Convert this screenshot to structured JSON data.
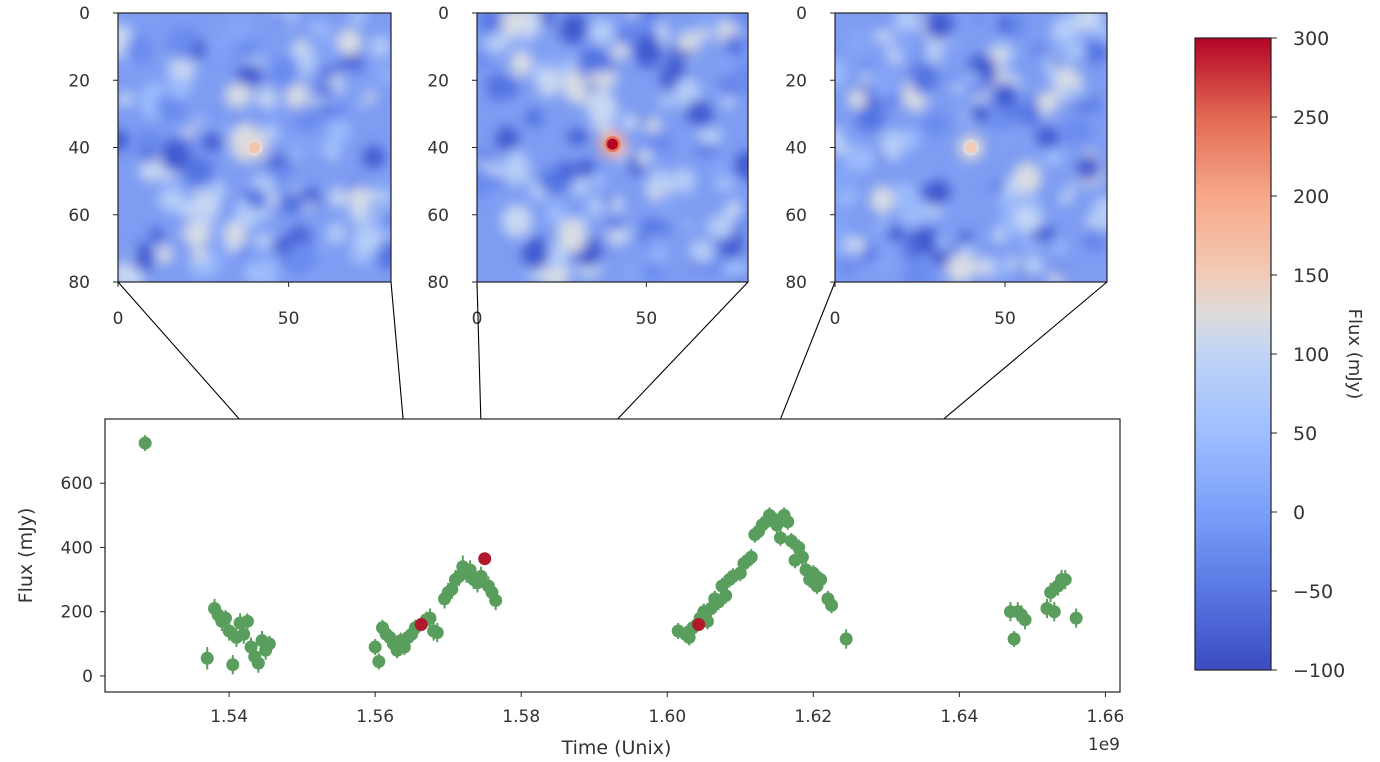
{
  "figure": {
    "colorbar_label": "Flux (mJy)",
    "offset_text": "1e9"
  },
  "chart_data": [
    {
      "type": "heatmap",
      "panel": "cutout-1",
      "xlim": [
        0,
        80
      ],
      "ylim": [
        80,
        0
      ],
      "xticks": [
        "0",
        "50"
      ],
      "yticks": [
        "0",
        "20",
        "40",
        "60",
        "80"
      ],
      "source_peak": {
        "x": 40,
        "y": 40,
        "value_mJy": 160
      },
      "linked_point": {
        "time": 1.5663,
        "flux": 160
      }
    },
    {
      "type": "heatmap",
      "panel": "cutout-2",
      "xlim": [
        0,
        80
      ],
      "ylim": [
        80,
        0
      ],
      "xticks": [
        "0",
        "50"
      ],
      "yticks": [
        "0",
        "20",
        "40",
        "60",
        "80"
      ],
      "source_peak": {
        "x": 40,
        "y": 39,
        "value_mJy": 300
      },
      "linked_point": {
        "time": 1.575,
        "flux": 365
      }
    },
    {
      "type": "heatmap",
      "panel": "cutout-3",
      "xlim": [
        0,
        80
      ],
      "ylim": [
        80,
        0
      ],
      "xticks": [
        "0",
        "50"
      ],
      "yticks": [
        "0",
        "20",
        "40",
        "60",
        "80"
      ],
      "source_peak": {
        "x": 40,
        "y": 40,
        "value_mJy": 150
      },
      "linked_point": {
        "time": 1.6043,
        "flux": 160
      }
    },
    {
      "type": "colorbar",
      "colormap": "coolwarm",
      "range": [
        -100,
        300
      ],
      "ticks": [
        "−100",
        "−50",
        "0",
        "50",
        "100",
        "150",
        "200",
        "250",
        "300"
      ],
      "label": "Flux (mJy)",
      "colors": {
        "low": "#3b4cc0",
        "mid": "#dddddd",
        "high": "#b40426"
      }
    },
    {
      "type": "scatter",
      "xlabel": "Time (Unix)",
      "ylabel": "Flux (mJy)",
      "x_offset_text": "1e9",
      "xlim": [
        1.523,
        1.662
      ],
      "ylim": [
        -50,
        800
      ],
      "xticks": [
        "1.54",
        "1.56",
        "1.58",
        "1.60",
        "1.62",
        "1.64",
        "1.66"
      ],
      "yticks": [
        "0",
        "200",
        "400",
        "600"
      ],
      "grid": false,
      "marker_color": "#5a9e5e",
      "highlight_color": "#b2182b",
      "series": [
        {
          "points": [
            [
              1.5285,
              725,
              25
            ],
            [
              1.537,
              55,
              35
            ],
            [
              1.538,
              210,
              30
            ],
            [
              1.5385,
              190,
              30
            ],
            [
              1.539,
              170,
              30
            ],
            [
              1.5395,
              180,
              25
            ],
            [
              1.54,
              140,
              30
            ],
            [
              1.5405,
              35,
              30
            ],
            [
              1.541,
              120,
              30
            ],
            [
              1.5415,
              165,
              30
            ],
            [
              1.542,
              130,
              30
            ],
            [
              1.5425,
              170,
              25
            ],
            [
              1.543,
              90,
              30
            ],
            [
              1.5435,
              60,
              30
            ],
            [
              1.544,
              40,
              30
            ],
            [
              1.5445,
              110,
              30
            ],
            [
              1.545,
              80,
              30
            ],
            [
              1.5455,
              100,
              25
            ],
            [
              1.56,
              90,
              25
            ],
            [
              1.5605,
              45,
              25
            ],
            [
              1.561,
              150,
              25
            ],
            [
              1.5615,
              130,
              25
            ],
            [
              1.562,
              120,
              25
            ],
            [
              1.5625,
              100,
              25
            ],
            [
              1.563,
              80,
              25
            ],
            [
              1.5635,
              110,
              25
            ],
            [
              1.564,
              90,
              25
            ],
            [
              1.5645,
              120,
              25
            ],
            [
              1.565,
              130,
              25
            ],
            [
              1.5655,
              150,
              25
            ],
            [
              1.567,
              175,
              25
            ],
            [
              1.5675,
              180,
              30
            ],
            [
              1.568,
              140,
              30
            ],
            [
              1.5685,
              135,
              30
            ],
            [
              1.5695,
              240,
              30
            ],
            [
              1.57,
              260,
              30
            ],
            [
              1.5705,
              270,
              30
            ],
            [
              1.571,
              300,
              30
            ],
            [
              1.5715,
              310,
              30
            ],
            [
              1.572,
              340,
              35
            ],
            [
              1.5725,
              320,
              30
            ],
            [
              1.573,
              330,
              30
            ],
            [
              1.5735,
              300,
              30
            ],
            [
              1.574,
              290,
              30
            ],
            [
              1.5745,
              310,
              30
            ],
            [
              1.5755,
              280,
              30
            ],
            [
              1.576,
              260,
              30
            ],
            [
              1.5765,
              235,
              30
            ],
            [
              1.6015,
              140,
              25
            ],
            [
              1.6025,
              130,
              25
            ],
            [
              1.603,
              120,
              25
            ],
            [
              1.6035,
              150,
              25
            ],
            [
              1.6045,
              180,
              25
            ],
            [
              1.605,
              200,
              25
            ],
            [
              1.6055,
              170,
              25
            ],
            [
              1.606,
              210,
              25
            ],
            [
              1.6065,
              240,
              25
            ],
            [
              1.607,
              230,
              25
            ],
            [
              1.6075,
              280,
              25
            ],
            [
              1.608,
              250,
              25
            ],
            [
              1.6085,
              300,
              25
            ],
            [
              1.609,
              310,
              25
            ],
            [
              1.61,
              320,
              25
            ],
            [
              1.6105,
              350,
              25
            ],
            [
              1.611,
              360,
              25
            ],
            [
              1.6115,
              370,
              25
            ],
            [
              1.612,
              440,
              25
            ],
            [
              1.6125,
              450,
              25
            ],
            [
              1.613,
              470,
              25
            ],
            [
              1.6135,
              480,
              25
            ],
            [
              1.614,
              500,
              25
            ],
            [
              1.6145,
              490,
              25
            ],
            [
              1.615,
              470,
              25
            ],
            [
              1.6155,
              430,
              25
            ],
            [
              1.616,
              500,
              25
            ],
            [
              1.6165,
              480,
              25
            ],
            [
              1.617,
              420,
              25
            ],
            [
              1.6175,
              360,
              25
            ],
            [
              1.618,
              400,
              25
            ],
            [
              1.6185,
              370,
              25
            ],
            [
              1.619,
              330,
              25
            ],
            [
              1.6195,
              300,
              25
            ],
            [
              1.62,
              320,
              25
            ],
            [
              1.6205,
              280,
              25
            ],
            [
              1.621,
              300,
              25
            ],
            [
              1.622,
              240,
              25
            ],
            [
              1.6225,
              220,
              25
            ],
            [
              1.6245,
              115,
              30
            ],
            [
              1.647,
              200,
              30
            ],
            [
              1.6475,
              115,
              25
            ],
            [
              1.648,
              200,
              30
            ],
            [
              1.6485,
              190,
              30
            ],
            [
              1.649,
              175,
              30
            ],
            [
              1.652,
              210,
              30
            ],
            [
              1.6525,
              260,
              30
            ],
            [
              1.653,
              200,
              30
            ],
            [
              1.6535,
              280,
              30
            ],
            [
              1.654,
              300,
              30
            ],
            [
              1.6545,
              300,
              30
            ],
            [
              1.656,
              180,
              30
            ]
          ]
        },
        {
          "highlight": true,
          "points": [
            [
              1.5663,
              160
            ],
            [
              1.575,
              365
            ],
            [
              1.6043,
              160
            ]
          ]
        }
      ]
    }
  ]
}
